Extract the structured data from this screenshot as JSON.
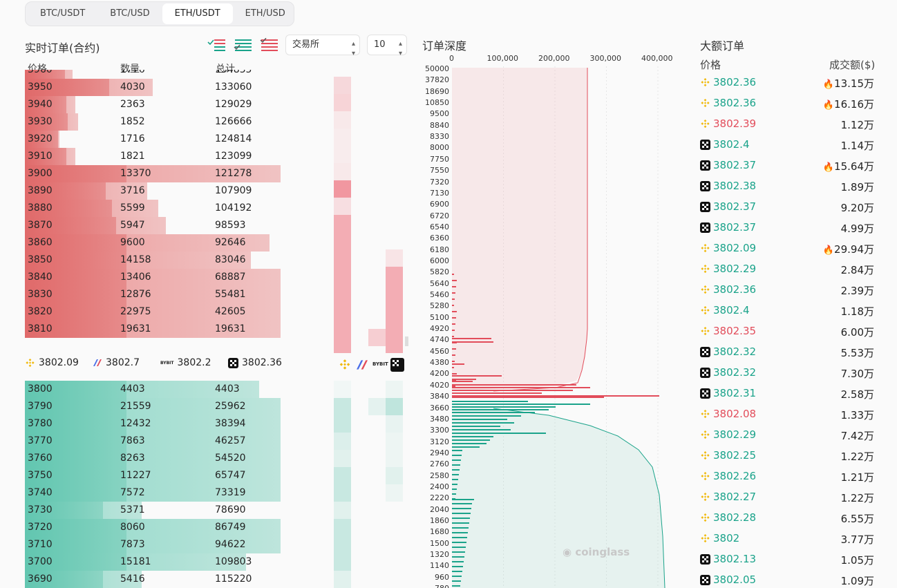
{
  "tabs": [
    "BTC/USDT",
    "BTC/USD",
    "ETH/USDT",
    "ETH/USD"
  ],
  "active_tab": "ETH/USDT",
  "orderbook": {
    "title": "实时订单(合约)",
    "exchange_select": "交易所",
    "depth_select": "10",
    "headers": {
      "price": "价格",
      "qty": "数量",
      "total": "总计"
    },
    "asks": [
      {
        "price": "3960",
        "qty": "1776",
        "total": "134835",
        "fill": 0.18
      },
      {
        "price": "3950",
        "qty": "4030",
        "total": "133060",
        "fill": 0.48
      },
      {
        "price": "3940",
        "qty": "2363",
        "total": "129029",
        "fill": 0.19
      },
      {
        "price": "3930",
        "qty": "1852",
        "total": "126666",
        "fill": 0.2
      },
      {
        "price": "3920",
        "qty": "1716",
        "total": "124814",
        "fill": 0.13
      },
      {
        "price": "3910",
        "qty": "1821",
        "total": "123099",
        "fill": 0.19
      },
      {
        "price": "3900",
        "qty": "13370",
        "total": "121278",
        "fill": 0.96
      },
      {
        "price": "3890",
        "qty": "3716",
        "total": "107909",
        "fill": 0.46
      },
      {
        "price": "3880",
        "qty": "5599",
        "total": "104192",
        "fill": 0.5
      },
      {
        "price": "3870",
        "qty": "5947",
        "total": "98593",
        "fill": 0.53
      },
      {
        "price": "3860",
        "qty": "9600",
        "total": "92646",
        "fill": 0.92
      },
      {
        "price": "3850",
        "qty": "14158",
        "total": "83046",
        "fill": 0.85
      },
      {
        "price": "3840",
        "qty": "13406",
        "total": "68887",
        "fill": 0.96
      },
      {
        "price": "3830",
        "qty": "12876",
        "total": "55481",
        "fill": 0.96
      },
      {
        "price": "3820",
        "qty": "22975",
        "total": "42605",
        "fill": 0.96
      },
      {
        "price": "3810",
        "qty": "19631",
        "total": "19631",
        "fill": 0.96
      }
    ],
    "bids": [
      {
        "price": "3800",
        "qty": "4403",
        "total": "4403",
        "fill": 0.88
      },
      {
        "price": "3790",
        "qty": "21559",
        "total": "25962",
        "fill": 0.96
      },
      {
        "price": "3780",
        "qty": "12432",
        "total": "38394",
        "fill": 0.96
      },
      {
        "price": "3770",
        "qty": "7863",
        "total": "46257",
        "fill": 0.96
      },
      {
        "price": "3760",
        "qty": "8263",
        "total": "54520",
        "fill": 0.96
      },
      {
        "price": "3750",
        "qty": "11227",
        "total": "65747",
        "fill": 0.96
      },
      {
        "price": "3740",
        "qty": "7572",
        "total": "73319",
        "fill": 0.96
      },
      {
        "price": "3730",
        "qty": "5371",
        "total": "78690",
        "fill": 0.44
      },
      {
        "price": "3720",
        "qty": "8060",
        "total": "86749",
        "fill": 0.96
      },
      {
        "price": "3710",
        "qty": "7873",
        "total": "94622",
        "fill": 0.96
      },
      {
        "price": "3700",
        "qty": "15181",
        "total": "109803",
        "fill": 0.83
      },
      {
        "price": "3690",
        "qty": "5416",
        "total": "115220",
        "fill": 0.44
      }
    ],
    "exchange_prices": [
      {
        "icon": "binance-icon",
        "price": "3802.09"
      },
      {
        "icon": "bitmex-icon",
        "price": "3802.7"
      },
      {
        "icon": "bybit-icon",
        "price": "3802.2"
      },
      {
        "icon": "okx-icon",
        "price": "3802.36"
      }
    ]
  },
  "depth_chart": {
    "title": "订单深度",
    "x_ticks": [
      "0",
      "100,000",
      "200,000",
      "300,000",
      "400,000"
    ],
    "y_ticks": [
      "50000",
      "37820",
      "18690",
      "10850",
      "9500",
      "8840",
      "8330",
      "8000",
      "7750",
      "7550",
      "7320",
      "7130",
      "6900",
      "6720",
      "6540",
      "6360",
      "6180",
      "6000",
      "5820",
      "5640",
      "5460",
      "5280",
      "5100",
      "4920",
      "4740",
      "4560",
      "4380",
      "4200",
      "4020",
      "3840",
      "3660",
      "3480",
      "3300",
      "3120",
      "2940",
      "2760",
      "2580",
      "2400",
      "2220",
      "2040",
      "1860",
      "1680",
      "1500",
      "1320",
      "1140",
      "960",
      "780"
    ],
    "watermark": "coinglass",
    "colors": {
      "ask": "#e24c5a",
      "bid": "#1aa38a"
    }
  },
  "big_orders": {
    "title": "大额订单",
    "headers": {
      "price": "价格",
      "amount": "成交额($)"
    },
    "rows": [
      {
        "ex": "binance",
        "price": "3802.36",
        "side": "buy",
        "amount": "13.15万",
        "hot": true
      },
      {
        "ex": "binance",
        "price": "3802.36",
        "side": "buy",
        "amount": "16.16万",
        "hot": true
      },
      {
        "ex": "binance",
        "price": "3802.39",
        "side": "sell",
        "amount": "1.12万",
        "hot": false
      },
      {
        "ex": "okx",
        "price": "3802.4",
        "side": "buy",
        "amount": "1.14万",
        "hot": false
      },
      {
        "ex": "okx",
        "price": "3802.37",
        "side": "buy",
        "amount": "15.64万",
        "hot": true
      },
      {
        "ex": "okx",
        "price": "3802.38",
        "side": "buy",
        "amount": "1.89万",
        "hot": false
      },
      {
        "ex": "okx",
        "price": "3802.37",
        "side": "buy",
        "amount": "9.20万",
        "hot": false
      },
      {
        "ex": "okx",
        "price": "3802.37",
        "side": "buy",
        "amount": "4.99万",
        "hot": false
      },
      {
        "ex": "binance",
        "price": "3802.09",
        "side": "buy",
        "amount": "29.94万",
        "hot": true
      },
      {
        "ex": "binance",
        "price": "3802.29",
        "side": "buy",
        "amount": "2.84万",
        "hot": false
      },
      {
        "ex": "binance",
        "price": "3802.36",
        "side": "buy",
        "amount": "2.39万",
        "hot": false
      },
      {
        "ex": "binance",
        "price": "3802.4",
        "side": "buy",
        "amount": "1.18万",
        "hot": false
      },
      {
        "ex": "binance",
        "price": "3802.35",
        "side": "sell",
        "amount": "6.00万",
        "hot": false
      },
      {
        "ex": "okx",
        "price": "3802.32",
        "side": "buy",
        "amount": "5.53万",
        "hot": false
      },
      {
        "ex": "okx",
        "price": "3802.32",
        "side": "buy",
        "amount": "7.30万",
        "hot": false
      },
      {
        "ex": "okx",
        "price": "3802.31",
        "side": "buy",
        "amount": "2.58万",
        "hot": false
      },
      {
        "ex": "binance",
        "price": "3802.08",
        "side": "sell",
        "amount": "1.33万",
        "hot": false
      },
      {
        "ex": "binance",
        "price": "3802.29",
        "side": "buy",
        "amount": "7.42万",
        "hot": false
      },
      {
        "ex": "binance",
        "price": "3802.25",
        "side": "buy",
        "amount": "1.22万",
        "hot": false
      },
      {
        "ex": "binance",
        "price": "3802.26",
        "side": "buy",
        "amount": "1.21万",
        "hot": false
      },
      {
        "ex": "binance",
        "price": "3802.27",
        "side": "buy",
        "amount": "1.22万",
        "hot": false
      },
      {
        "ex": "binance",
        "price": "3802.28",
        "side": "buy",
        "amount": "6.55万",
        "hot": false
      },
      {
        "ex": "binance",
        "price": "3802",
        "side": "buy",
        "amount": "3.77万",
        "hot": false
      },
      {
        "ex": "okx",
        "price": "3802.13",
        "side": "buy",
        "amount": "1.05万",
        "hot": false
      },
      {
        "ex": "okx",
        "price": "3802.05",
        "side": "buy",
        "amount": "1.09万",
        "hot": false
      }
    ]
  }
}
